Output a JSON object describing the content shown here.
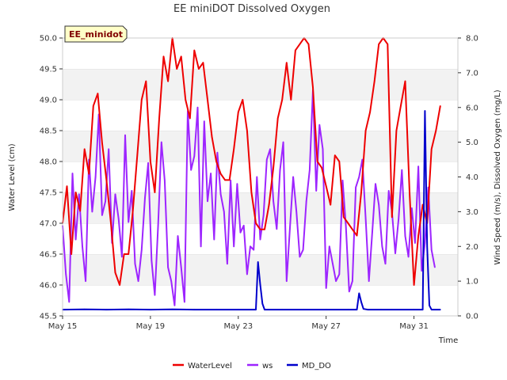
{
  "chart_data": {
    "type": "line",
    "title": "EE miniDOT Dissolved Oxygen",
    "badge": "EE_minidot",
    "xlabel": "Time",
    "ylabel_left": "Water Level (cm)",
    "ylabel_right": "Wind Speed (m/s), Dissolved Oxygen (mg/L)",
    "x_unit": "days from May 15",
    "xlim": [
      0,
      18
    ],
    "ylim_left": [
      45.5,
      50.0
    ],
    "ylim_right": [
      0.0,
      8.0
    ],
    "x_ticks": [
      {
        "x": 0,
        "label": "May 15"
      },
      {
        "x": 4,
        "label": "May 19"
      },
      {
        "x": 8,
        "label": "May 23"
      },
      {
        "x": 12,
        "label": "May 27"
      },
      {
        "x": 16,
        "label": "May 31"
      }
    ],
    "y_ticks_left": [
      "45.5",
      "46.0",
      "46.5",
      "47.0",
      "47.5",
      "48.0",
      "48.5",
      "49.0",
      "49.5",
      "50.0"
    ],
    "y_ticks_right": [
      "0.0",
      "1.0",
      "2.0",
      "3.0",
      "4.0",
      "5.0",
      "6.0",
      "7.0",
      "8.0"
    ],
    "grid": "horizontal bands",
    "legend_position": "bottom-center",
    "series": [
      {
        "name": "WaterLevel",
        "axis": "left",
        "color": "#ee0000",
        "x": [
          0.0,
          0.2,
          0.4,
          0.6,
          0.8,
          1.0,
          1.2,
          1.4,
          1.6,
          1.8,
          2.0,
          2.2,
          2.4,
          2.6,
          2.8,
          3.0,
          3.2,
          3.4,
          3.6,
          3.8,
          4.0,
          4.2,
          4.4,
          4.6,
          4.8,
          5.0,
          5.2,
          5.4,
          5.6,
          5.8,
          6.0,
          6.2,
          6.4,
          6.6,
          6.8,
          7.0,
          7.2,
          7.4,
          7.6,
          7.8,
          8.0,
          8.2,
          8.4,
          8.6,
          8.8,
          9.0,
          9.2,
          9.4,
          9.6,
          9.8,
          10.0,
          10.2,
          10.4,
          10.6,
          10.8,
          11.0,
          11.2,
          11.4,
          11.6,
          11.8,
          12.0,
          12.2,
          12.4,
          12.6,
          12.8,
          13.0,
          13.2,
          13.4,
          13.6,
          13.8,
          14.0,
          14.2,
          14.4,
          14.6,
          14.8,
          15.0,
          15.2,
          15.4,
          15.6,
          15.8,
          16.0,
          16.2,
          16.4,
          16.6,
          16.8,
          17.0,
          17.2
        ],
        "values": [
          47.0,
          47.6,
          46.5,
          47.5,
          47.2,
          48.2,
          47.8,
          48.9,
          49.1,
          48.3,
          47.7,
          47.0,
          46.2,
          46.0,
          46.5,
          46.5,
          47.2,
          48.1,
          49.0,
          49.3,
          48.0,
          47.5,
          48.7,
          49.7,
          49.3,
          50.0,
          49.5,
          49.7,
          49.0,
          48.7,
          49.8,
          49.5,
          49.6,
          49.0,
          48.4,
          48.0,
          47.8,
          47.7,
          47.7,
          48.2,
          48.8,
          49.0,
          48.5,
          47.5,
          47.0,
          46.9,
          46.9,
          47.3,
          47.9,
          48.7,
          49.0,
          49.6,
          49.0,
          49.8,
          49.9,
          50.0,
          49.9,
          49.2,
          48.0,
          47.9,
          47.6,
          47.3,
          48.1,
          48.0,
          47.1,
          47.0,
          46.9,
          46.8,
          47.5,
          48.5,
          48.8,
          49.3,
          49.9,
          50.0,
          49.9,
          47.1,
          48.5,
          48.9,
          49.3,
          47.5,
          46.0,
          46.8,
          47.3,
          47.0,
          48.2,
          48.5,
          48.9
        ]
      },
      {
        "name": "ws",
        "axis": "right",
        "color": "#9d25ff",
        "x": [
          0.0,
          0.15,
          0.3,
          0.45,
          0.6,
          0.75,
          0.9,
          1.05,
          1.2,
          1.35,
          1.5,
          1.65,
          1.8,
          1.95,
          2.1,
          2.25,
          2.4,
          2.55,
          2.7,
          2.85,
          3.0,
          3.15,
          3.3,
          3.45,
          3.6,
          3.75,
          3.9,
          4.05,
          4.2,
          4.35,
          4.5,
          4.65,
          4.8,
          4.95,
          5.1,
          5.25,
          5.4,
          5.55,
          5.7,
          5.85,
          6.0,
          6.15,
          6.3,
          6.45,
          6.6,
          6.75,
          6.9,
          7.05,
          7.2,
          7.35,
          7.5,
          7.65,
          7.8,
          7.95,
          8.1,
          8.25,
          8.4,
          8.55,
          8.7,
          8.85,
          9.0,
          9.15,
          9.3,
          9.45,
          9.6,
          9.75,
          9.9,
          10.05,
          10.2,
          10.35,
          10.5,
          10.65,
          10.8,
          10.95,
          11.1,
          11.25,
          11.4,
          11.55,
          11.7,
          11.85,
          12.0,
          12.15,
          12.3,
          12.45,
          12.6,
          12.75,
          12.9,
          13.05,
          13.2,
          13.35,
          13.5,
          13.65,
          13.8,
          13.95,
          14.1,
          14.25,
          14.4,
          14.55,
          14.7,
          14.85,
          15.0,
          15.15,
          15.3,
          15.45,
          15.6,
          15.75,
          15.9,
          16.05,
          16.2,
          16.35,
          16.5,
          16.65,
          16.8,
          16.95
        ],
        "values": [
          2.6,
          1.2,
          0.4,
          4.1,
          2.2,
          3.5,
          2.0,
          1.0,
          4.5,
          3.0,
          4.0,
          5.8,
          2.9,
          3.3,
          4.8,
          2.1,
          3.5,
          2.8,
          1.7,
          5.2,
          2.7,
          3.6,
          1.5,
          1.0,
          1.9,
          3.4,
          4.4,
          1.6,
          0.6,
          2.6,
          5.0,
          3.9,
          1.4,
          1.0,
          0.3,
          2.3,
          1.4,
          0.4,
          5.9,
          4.2,
          4.6,
          6.0,
          2.0,
          5.6,
          3.3,
          4.1,
          2.2,
          4.7,
          3.5,
          3.0,
          1.5,
          3.9,
          2.0,
          3.8,
          2.4,
          2.6,
          1.2,
          2.0,
          1.9,
          4.0,
          2.2,
          2.9,
          4.5,
          4.8,
          3.3,
          2.5,
          4.2,
          5.0,
          1.0,
          2.5,
          4.0,
          3.0,
          1.7,
          1.9,
          3.3,
          4.2,
          6.5,
          3.6,
          5.5,
          4.8,
          0.8,
          2.0,
          1.5,
          1.0,
          1.2,
          3.9,
          2.6,
          0.7,
          1.0,
          3.7,
          4.0,
          4.5,
          2.8,
          1.0,
          2.4,
          3.8,
          3.2,
          2.0,
          1.5,
          3.6,
          3.0,
          1.8,
          2.8,
          4.2,
          2.3,
          1.7,
          3.1,
          2.1,
          4.3,
          1.3,
          2.1,
          3.7,
          1.9,
          1.4
        ]
      },
      {
        "name": "MD_DO",
        "axis": "right",
        "color": "#0000cc",
        "x": [
          0.0,
          1.0,
          2.0,
          3.0,
          4.0,
          5.0,
          6.0,
          7.0,
          8.0,
          8.8,
          8.9,
          9.0,
          9.1,
          9.2,
          9.4,
          10.0,
          11.0,
          12.0,
          13.0,
          13.4,
          13.5,
          13.6,
          13.7,
          13.9,
          14.5,
          15.0,
          16.0,
          16.4,
          16.5,
          16.6,
          16.7,
          16.8,
          17.2
        ],
        "values": [
          0.18,
          0.19,
          0.18,
          0.19,
          0.18,
          0.19,
          0.18,
          0.18,
          0.18,
          0.18,
          1.55,
          0.9,
          0.35,
          0.18,
          0.18,
          0.18,
          0.18,
          0.18,
          0.18,
          0.18,
          0.65,
          0.4,
          0.2,
          0.18,
          0.18,
          0.18,
          0.18,
          0.18,
          5.9,
          2.0,
          0.3,
          0.18,
          0.18
        ]
      }
    ]
  }
}
